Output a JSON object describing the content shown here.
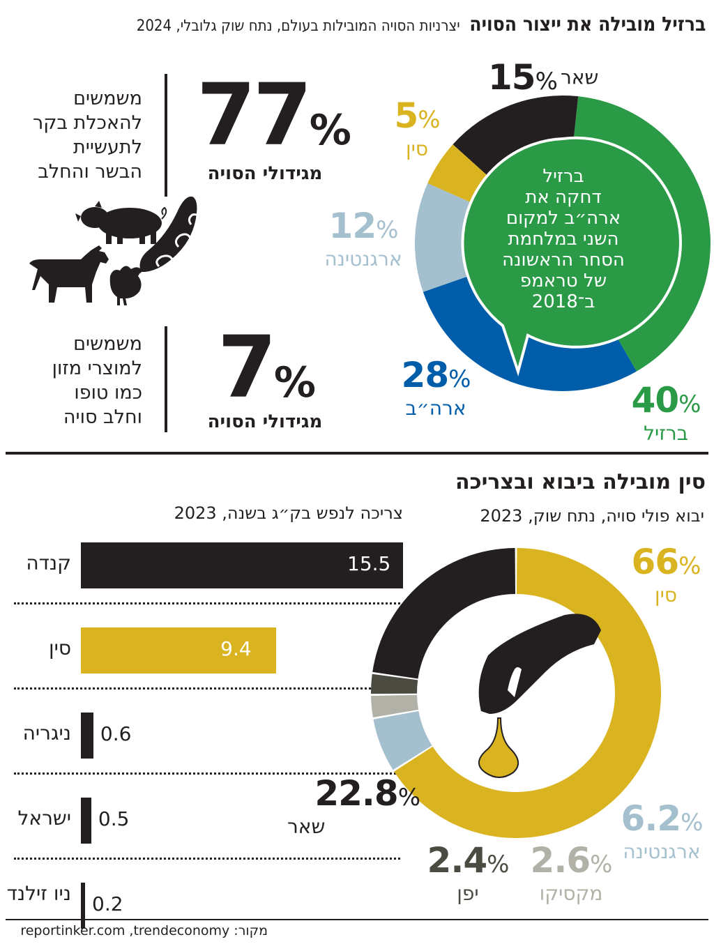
{
  "header": {
    "title": "ברזיל מובילה את ייצור הסויה",
    "subtitle": "יצרניות הסויה המובילות בעולם, נתח שוק גלובלי, 2024"
  },
  "usage": {
    "meat": {
      "text_lines": [
        "משמשים",
        "להאכלת בקר",
        "לתעשיית",
        "הבשר והחלב"
      ],
      "value": "77",
      "pct": "%",
      "sub": "מגידולי הסויה"
    },
    "food": {
      "text_lines": [
        "משמשים",
        "למוצרי מזון",
        "כמו טופו",
        "וחלב סויה"
      ],
      "value": "7",
      "pct": "%",
      "sub": "מגידולי הסויה"
    }
  },
  "production_note": [
    "ברזיל",
    "דחקה את",
    "ארה״ב למקום",
    "השני במלחמת",
    "הסחר הראשונה",
    "של טראמפ",
    "ב־2018"
  ],
  "sections": {
    "bottom_title": "סין מובילה ביבוא ובצריכה",
    "imports_subtitle": "יבוא פולי סויה, נתח שוק, 2023",
    "consumption_subtitle": "צריכה לנפש בק״ג בשנה, 2023"
  },
  "chart_data": [
    {
      "type": "pie",
      "title": "",
      "slices": [
        {
          "name": "ברזיל",
          "value": 40,
          "color": "#2a9a47"
        },
        {
          "name": "ארה״ב",
          "value": 28,
          "color": "#005daa"
        },
        {
          "name": "ארגנטינה",
          "value": 12,
          "color": "#a4bfcd"
        },
        {
          "name": "סין",
          "value": 5,
          "color": "#dab321"
        },
        {
          "name": "שאר",
          "value": 15,
          "color": "#231f20"
        }
      ]
    },
    {
      "type": "pie",
      "title": "",
      "slices": [
        {
          "name": "סין",
          "value": 66,
          "color": "#dab321"
        },
        {
          "name": "ארגנטינה",
          "value": 6.2,
          "color": "#a4bfcd"
        },
        {
          "name": "מקסיקו",
          "value": 2.6,
          "color": "#b1b1a7"
        },
        {
          "name": "יפן",
          "value": 2.4,
          "color": "#4b4b42"
        },
        {
          "name": "שאר",
          "value": 22.8,
          "color": "#231f20"
        }
      ]
    },
    {
      "type": "bar",
      "categories": [
        "קנדה",
        "סין",
        "ניגריה",
        "ישראל",
        "ניו זילנד"
      ],
      "values": [
        15.5,
        9.4,
        0.6,
        0.5,
        0.2
      ],
      "value_labels": [
        "15.5",
        "9.4",
        "0.6",
        "0.5",
        "0.2"
      ],
      "colors": [
        "#231f20",
        "#dab321",
        "#231f20",
        "#231f20",
        "#231f20"
      ]
    }
  ],
  "source": "מקור: reportinker.com ,trendeconomy"
}
